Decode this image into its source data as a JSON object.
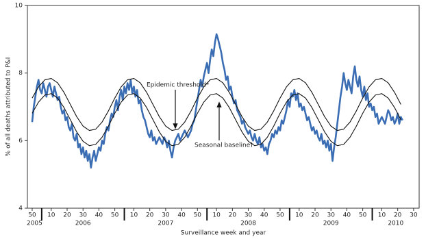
{
  "chart_data": {
    "type": "line",
    "y_label": "% of all deaths attributed to P&I",
    "x_label": "Surveillance week and year",
    "ylim": [
      4,
      10
    ],
    "yticks": [
      4,
      6,
      8,
      10
    ],
    "xlim": [
      -3,
      243.5
    ],
    "xticks": [
      {
        "value": 0,
        "label": "50"
      },
      {
        "value": 12,
        "label": "10"
      },
      {
        "value": 22,
        "label": "20"
      },
      {
        "value": 32,
        "label": "30"
      },
      {
        "value": 42,
        "label": "40"
      },
      {
        "value": 52,
        "label": "50"
      },
      {
        "value": 64,
        "label": "10"
      },
      {
        "value": 74,
        "label": "20"
      },
      {
        "value": 84,
        "label": "30"
      },
      {
        "value": 94,
        "label": "40"
      },
      {
        "value": 104,
        "label": "50"
      },
      {
        "value": 116,
        "label": "10"
      },
      {
        "value": 126,
        "label": "20"
      },
      {
        "value": 136,
        "label": "30"
      },
      {
        "value": 146,
        "label": "40"
      },
      {
        "value": 156,
        "label": "50"
      },
      {
        "value": 168,
        "label": "10"
      },
      {
        "value": 178,
        "label": "20"
      },
      {
        "value": 188,
        "label": "30"
      },
      {
        "value": 198,
        "label": "40"
      },
      {
        "value": 208,
        "label": "50"
      },
      {
        "value": 220,
        "label": "10"
      },
      {
        "value": 230,
        "label": "20"
      },
      {
        "value": 240,
        "label": "30"
      }
    ],
    "years": [
      "2005",
      "2006",
      "2007",
      "2008",
      "2009",
      "2010"
    ],
    "series": [
      {
        "color": "#3a6db3",
        "width": 2.6,
        "x": [
          0,
          1,
          2,
          3,
          4,
          5,
          6,
          7,
          8,
          9,
          10,
          11,
          12,
          13,
          14,
          15,
          16,
          17,
          18,
          19,
          20,
          21,
          22,
          23,
          24,
          25,
          26,
          27,
          28,
          29,
          30,
          31,
          32,
          33,
          34,
          35,
          36,
          37,
          38,
          39,
          40,
          41,
          42,
          43,
          44,
          45,
          46,
          47,
          48,
          49,
          50,
          51,
          52,
          53,
          54,
          55,
          56,
          57,
          58,
          59,
          60,
          61,
          62,
          63,
          64,
          65,
          66,
          67,
          68,
          69,
          70,
          71,
          72,
          73,
          74,
          75,
          76,
          77,
          78,
          79,
          80,
          81,
          82,
          83,
          84,
          85,
          86,
          87,
          88,
          89,
          90,
          91,
          92,
          93,
          94,
          95,
          96,
          97,
          98,
          99,
          100,
          101,
          102,
          103,
          104,
          105,
          106,
          107,
          108,
          109,
          110,
          111,
          112,
          113,
          114,
          115,
          116,
          117,
          118,
          119,
          120,
          121,
          122,
          123,
          124,
          125,
          126,
          127,
          128,
          129,
          130,
          131,
          132,
          133,
          134,
          135,
          136,
          137,
          138,
          139,
          140,
          141,
          142,
          143,
          144,
          145,
          146,
          147,
          148,
          149,
          150,
          151,
          152,
          153,
          154,
          155,
          156,
          157,
          158,
          159,
          160,
          161,
          162,
          163,
          164,
          165,
          166,
          167,
          168,
          169,
          170,
          171,
          172,
          173,
          174,
          175,
          176,
          177,
          178,
          179,
          180,
          181,
          182,
          183,
          184,
          185,
          186,
          187,
          188,
          189,
          190,
          191,
          192,
          193,
          194,
          195,
          196,
          197,
          198,
          199,
          200,
          201,
          202,
          203,
          204,
          205,
          206,
          207,
          208,
          209,
          210,
          211,
          212,
          213,
          214,
          215,
          216,
          217,
          218,
          219,
          220,
          221,
          222,
          223,
          224,
          225,
          226,
          227,
          228,
          229,
          230,
          231,
          232,
          233
        ],
        "values": [
          6.55,
          7.0,
          7.3,
          7.6,
          7.8,
          7.5,
          7.4,
          7.7,
          7.5,
          7.3,
          7.6,
          7.7,
          7.5,
          7.3,
          7.6,
          7.4,
          7.2,
          7.3,
          7.0,
          6.8,
          6.9,
          6.6,
          6.7,
          6.4,
          6.3,
          6.5,
          6.1,
          6.0,
          6.2,
          5.8,
          5.9,
          5.6,
          5.8,
          5.5,
          5.7,
          5.4,
          5.6,
          5.2,
          5.5,
          5.7,
          5.4,
          5.6,
          5.8,
          5.7,
          6.0,
          5.9,
          6.2,
          6.4,
          6.3,
          6.6,
          6.8,
          6.7,
          7.0,
          7.2,
          6.9,
          7.3,
          7.5,
          7.2,
          7.6,
          7.4,
          7.7,
          7.5,
          7.8,
          7.4,
          7.6,
          7.3,
          7.5,
          7.1,
          7.2,
          6.9,
          6.7,
          6.6,
          6.4,
          6.2,
          6.1,
          6.3,
          6.0,
          6.1,
          5.9,
          6.0,
          6.1,
          6.0,
          5.9,
          6.1,
          6.0,
          5.8,
          6.0,
          5.7,
          5.5,
          5.8,
          6.0,
          6.1,
          6.2,
          6.0,
          6.1,
          6.2,
          6.3,
          6.2,
          6.1,
          6.2,
          6.3,
          6.5,
          6.6,
          6.9,
          7.2,
          7.5,
          7.8,
          7.6,
          7.9,
          8.1,
          8.3,
          8.0,
          8.4,
          8.7,
          8.5,
          8.9,
          9.15,
          9.0,
          8.8,
          8.6,
          8.3,
          8.1,
          7.8,
          7.9,
          7.5,
          7.6,
          7.3,
          7.1,
          7.2,
          6.9,
          6.8,
          6.7,
          6.5,
          6.6,
          6.4,
          6.3,
          6.2,
          6.3,
          6.1,
          6.0,
          6.2,
          6.0,
          5.9,
          6.1,
          5.8,
          5.9,
          5.7,
          5.8,
          5.6,
          5.9,
          6.0,
          6.2,
          6.1,
          6.3,
          6.2,
          6.4,
          6.3,
          6.6,
          6.5,
          6.7,
          6.9,
          7.2,
          7.0,
          7.4,
          7.3,
          7.5,
          7.2,
          7.4,
          7.0,
          7.1,
          6.9,
          7.0,
          6.8,
          6.6,
          6.7,
          6.5,
          6.3,
          6.4,
          6.2,
          6.3,
          6.1,
          6.0,
          6.2,
          5.9,
          6.0,
          5.8,
          6.0,
          5.7,
          5.9,
          5.4,
          5.8,
          6.1,
          6.5,
          6.9,
          7.3,
          7.6,
          8.0,
          7.7,
          7.5,
          7.8,
          7.6,
          7.4,
          7.9,
          8.2,
          7.8,
          7.6,
          7.9,
          7.5,
          7.3,
          7.6,
          7.2,
          7.4,
          7.0,
          7.1,
          6.9,
          7.0,
          6.7,
          6.8,
          6.5,
          6.6,
          6.7,
          6.6,
          6.5,
          6.7,
          6.9,
          6.8,
          6.6,
          6.7,
          6.5,
          6.6,
          6.8,
          6.5,
          6.7,
          6.6
        ]
      },
      {
        "name": "Epidemic threshold*",
        "color": "#111111",
        "width": 1.1,
        "x": [
          0,
          4,
          8,
          12,
          16,
          20,
          24,
          28,
          32,
          36,
          40,
          44,
          48,
          52,
          56,
          60,
          64,
          68,
          72,
          76,
          80,
          84,
          88,
          92,
          96,
          100,
          104,
          108,
          112,
          116,
          120,
          124,
          128,
          132,
          136,
          140,
          144,
          148,
          152,
          156,
          160,
          164,
          168,
          172,
          176,
          180,
          184,
          188,
          192,
          196,
          200,
          204,
          208,
          212,
          216,
          220,
          224,
          228,
          232
        ],
        "values": [
          7.26,
          7.59,
          7.8,
          7.84,
          7.71,
          7.43,
          7.07,
          6.71,
          6.43,
          6.3,
          6.34,
          6.55,
          6.88,
          7.26,
          7.59,
          7.8,
          7.84,
          7.71,
          7.43,
          7.07,
          6.71,
          6.43,
          6.3,
          6.34,
          6.55,
          6.88,
          7.26,
          7.59,
          7.8,
          7.84,
          7.71,
          7.43,
          7.07,
          6.71,
          6.43,
          6.3,
          6.34,
          6.55,
          6.88,
          7.26,
          7.59,
          7.8,
          7.84,
          7.71,
          7.43,
          7.07,
          6.71,
          6.43,
          6.3,
          6.34,
          6.55,
          6.88,
          7.26,
          7.59,
          7.8,
          7.84,
          7.71,
          7.43,
          7.07
        ]
      },
      {
        "name": "Seasonal baseline†",
        "color": "#111111",
        "width": 1.1,
        "x": [
          0,
          4,
          8,
          12,
          16,
          20,
          24,
          28,
          32,
          36,
          40,
          44,
          48,
          52,
          56,
          60,
          64,
          68,
          72,
          76,
          80,
          84,
          88,
          92,
          96,
          100,
          104,
          108,
          112,
          116,
          120,
          124,
          128,
          132,
          136,
          140,
          144,
          148,
          152,
          156,
          160,
          164,
          168,
          172,
          176,
          180,
          184,
          188,
          192,
          196,
          200,
          204,
          208,
          212,
          216,
          220,
          224,
          228,
          232
        ],
        "values": [
          6.81,
          7.14,
          7.35,
          7.39,
          7.26,
          6.98,
          6.62,
          6.26,
          5.98,
          5.85,
          5.89,
          6.1,
          6.43,
          6.81,
          7.14,
          7.35,
          7.39,
          7.26,
          6.98,
          6.62,
          6.26,
          5.98,
          5.85,
          5.89,
          6.1,
          6.43,
          6.81,
          7.14,
          7.35,
          7.39,
          7.26,
          6.98,
          6.62,
          6.26,
          5.98,
          5.85,
          5.89,
          6.1,
          6.43,
          6.81,
          7.14,
          7.35,
          7.39,
          7.26,
          6.98,
          6.62,
          6.26,
          5.98,
          5.85,
          5.89,
          6.1,
          6.43,
          6.81,
          7.14,
          7.35,
          7.39,
          7.26,
          6.98,
          6.62
        ]
      }
    ]
  }
}
